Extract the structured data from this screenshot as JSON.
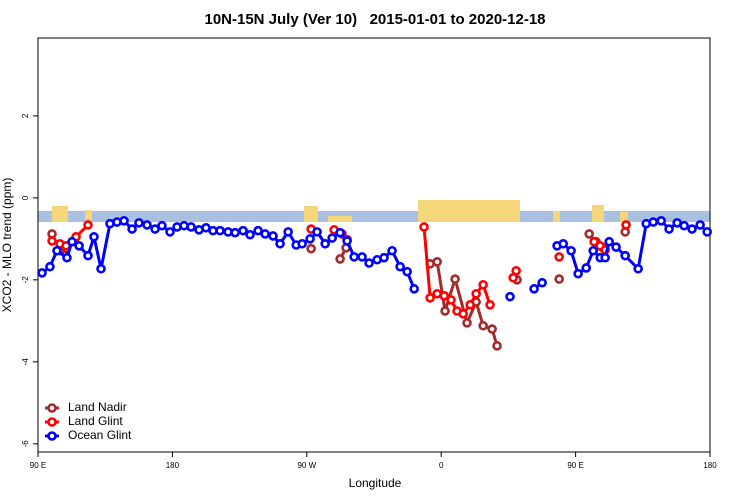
{
  "chart_data": {
    "type": "line",
    "title": "10N-15N July (Ver 10)   2015-01-01 to 2020-12-18",
    "x_label": "Longitude",
    "y_label": "XCO2 - MLO trend (ppm)",
    "xlim": [
      90,
      540
    ],
    "xticks": [
      {
        "value": 90,
        "label": "90 E"
      },
      180,
      {
        "value": 270,
        "label": "90 W"
      },
      {
        "value": 360,
        "label": "0"
      },
      {
        "value": 450,
        "label": "90 E"
      },
      {
        "value": 540,
        "label": "180"
      }
    ],
    "ylim": [
      -6.2,
      3.9
    ],
    "yticks": [
      2,
      0,
      -2,
      -4,
      -6
    ],
    "legend": "bottom-left",
    "series": [
      {
        "name": "Land Nadir",
        "color": "#a52a2a",
        "x": [
          99.4,
          104.7,
          108.8,
          null,
          272.9,
          null,
          292.3,
          296.3,
          null,
          352.6,
          357.3,
          362.6,
          369.3,
          377.3,
          383.4,
          388.1,
          394.1,
          397.4,
          null,
          410.8,
          null,
          439,
          null,
          459.1,
          463.7,
          468.4,
          null,
          483.2
        ],
        "values": [
          -0.88,
          -1.29,
          -1.24,
          null,
          -1.24,
          null,
          -1.49,
          -1.22,
          null,
          -1.61,
          -1.56,
          -2.76,
          -1.98,
          -3.05,
          -2.54,
          -3.12,
          -3.2,
          -3.61,
          null,
          -2.0,
          null,
          -1.98,
          null,
          -0.88,
          -1.07,
          -1.22,
          null,
          -0.83
        ]
      },
      {
        "name": "Land Glint",
        "color": "#ff0000",
        "x": [
          99.4,
          104.7,
          108.8,
          null,
          115.5,
          123.5,
          null,
          272.9,
          null,
          288.3,
          293.6,
          297,
          null,
          348.5,
          352.6,
          357.3,
          362,
          366.6,
          370.6,
          374.7,
          379.4,
          383.4,
          388.1,
          392.7,
          null,
          408.2,
          410.2,
          null,
          439,
          null,
          462.4,
          466.4,
          469.8,
          null,
          483.8
        ],
        "values": [
          -1.05,
          -1.12,
          -1.17,
          null,
          -0.95,
          -0.66,
          null,
          -0.76,
          null,
          -0.78,
          -0.88,
          -1.02,
          null,
          -0.71,
          -2.44,
          -2.34,
          -2.39,
          -2.49,
          -2.76,
          -2.83,
          -2.61,
          -2.34,
          -2.12,
          -2.61,
          null,
          -1.95,
          -1.78,
          null,
          -1.44,
          null,
          -1.07,
          -1.17,
          -1.27,
          null,
          -0.66
        ]
      },
      {
        "name": "Ocean Glint",
        "color": "#0000ff",
        "x": [
          92.7,
          98,
          102.7,
          109.4,
          112.8,
          117.5,
          123.5,
          127.5,
          132.2,
          138.2,
          142.9,
          147.6,
          153,
          157.6,
          163,
          168.4,
          173,
          178.4,
          183.1,
          187.8,
          192.5,
          197.8,
          202.5,
          207.2,
          211.9,
          217.3,
          222,
          227.3,
          232,
          237.4,
          242.1,
          247.4,
          252.1,
          257.5,
          262.9,
          266.9,
          272.2,
          276.9,
          282.3,
          287,
          292.3,
          297,
          301.7,
          307,
          311.7,
          317.1,
          321.7,
          327.1,
          332.5,
          337.2,
          341.9,
          null,
          406.1,
          null,
          422.2,
          427.6,
          null,
          437.6,
          441.7,
          447,
          451.7,
          457.1,
          461.8,
          466.5,
          469.8,
          472.5,
          477.1,
          483.2,
          491.9,
          497.3,
          502,
          507.3,
          512.6,
          518,
          522.7,
          528,
          533.4,
          538.1
        ],
        "values": [
          -1.83,
          -1.68,
          -1.29,
          -1.46,
          -1.07,
          -1.17,
          -1.41,
          -0.95,
          -1.73,
          -0.63,
          -0.59,
          -0.56,
          -0.76,
          -0.61,
          -0.66,
          -0.76,
          -0.68,
          -0.83,
          -0.71,
          -0.68,
          -0.71,
          -0.78,
          -0.73,
          -0.8,
          -0.8,
          -0.83,
          -0.85,
          -0.8,
          -0.9,
          -0.8,
          -0.88,
          -0.93,
          -1.12,
          -0.83,
          -1.15,
          -1.12,
          -1.0,
          -0.83,
          -1.12,
          -0.98,
          -0.85,
          -1.05,
          -1.44,
          -1.44,
          -1.59,
          -1.51,
          -1.46,
          -1.29,
          -1.68,
          -1.8,
          -2.22,
          null,
          -2.41,
          null,
          -2.22,
          -2.07,
          null,
          -1.17,
          -1.12,
          -1.29,
          -1.85,
          -1.71,
          -1.29,
          -1.46,
          -1.46,
          -1.07,
          -1.2,
          -1.41,
          -1.73,
          -0.63,
          -0.59,
          -0.56,
          -0.76,
          -0.61,
          -0.68,
          -0.76,
          -0.66,
          -0.83
        ]
      }
    ]
  }
}
